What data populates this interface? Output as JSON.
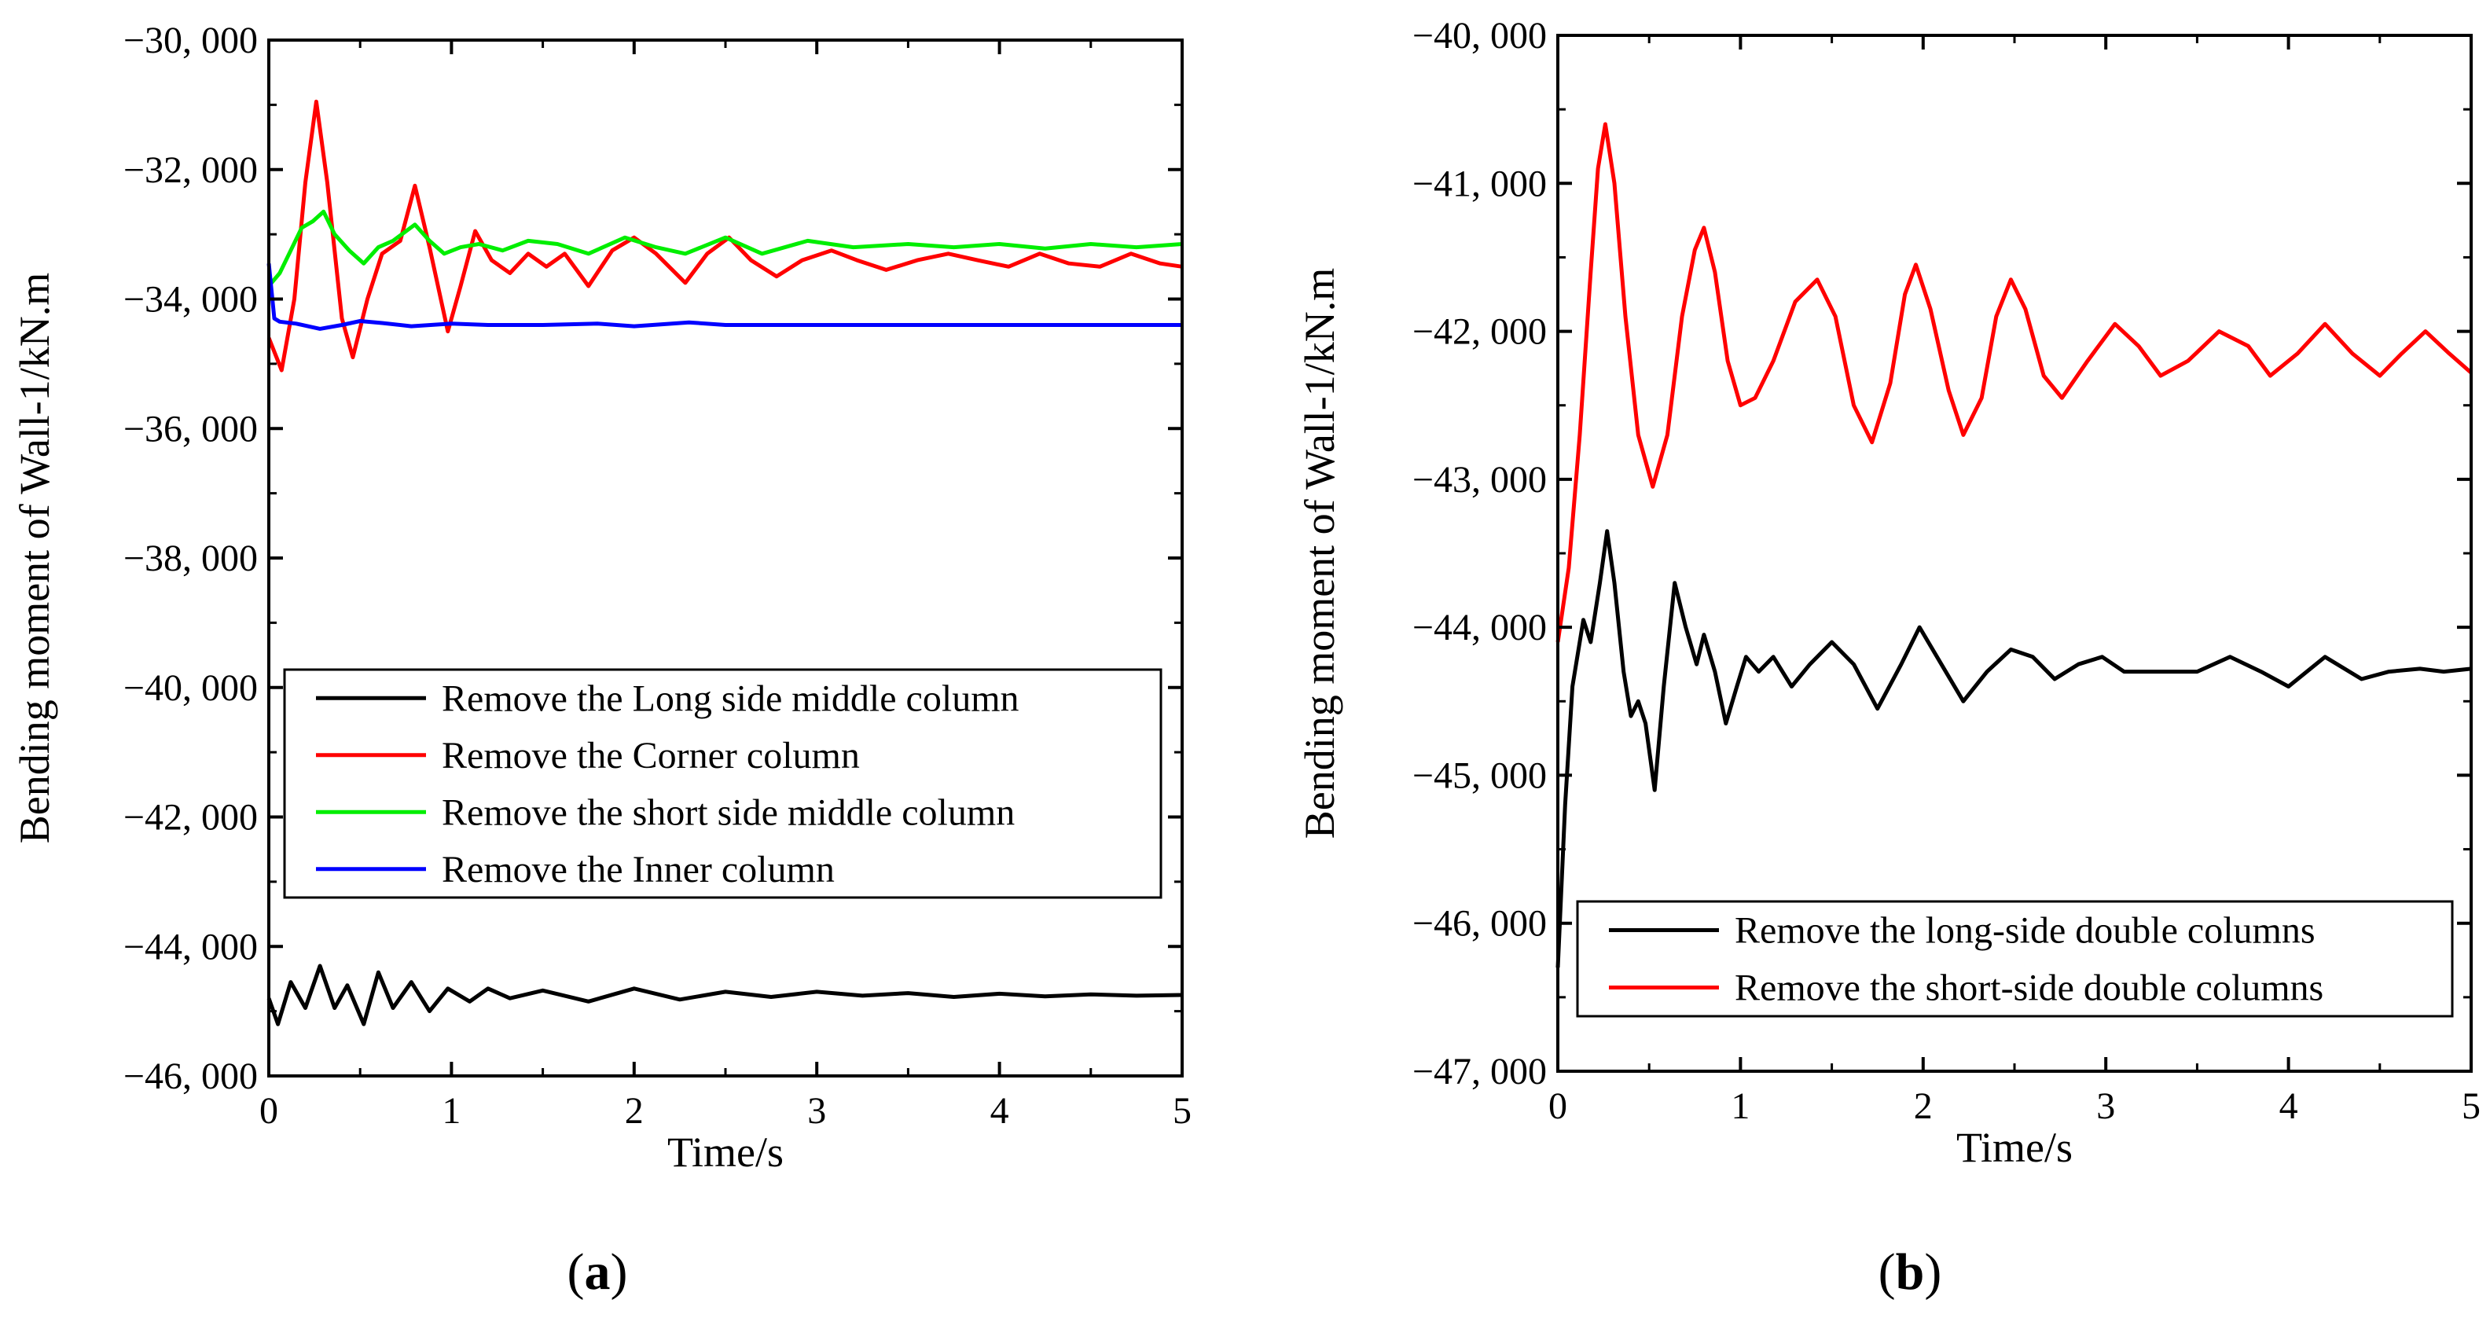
{
  "chart_data": [
    {
      "panel_label": "(a)",
      "type": "line",
      "xlabel": "Time/s",
      "ylabel": "Bending moment of  Wall-1/kN.m",
      "xlim": [
        0,
        5
      ],
      "ylim": [
        -46000,
        -30000
      ],
      "x_ticks": [
        0,
        1,
        2,
        3,
        4,
        5
      ],
      "x_tick_labels": [
        "0",
        "1",
        "2",
        "3",
        "4",
        "5"
      ],
      "y_ticks": [
        -30000,
        -32000,
        -34000,
        -36000,
        -38000,
        -40000,
        -42000,
        -44000,
        -46000
      ],
      "y_tick_labels": [
        "−30, 000",
        "−32, 000",
        "−34, 000",
        "−36, 000",
        "−38, 000",
        "−40, 000",
        "−42, 000",
        "−44, 000",
        "−46, 000"
      ],
      "legend_position": "center-right",
      "series": [
        {
          "name": "Remove the Long side middle column",
          "color": "#000000",
          "points": [
            [
              0.0,
              -44800
            ],
            [
              0.05,
              -45200
            ],
            [
              0.12,
              -44550
            ],
            [
              0.2,
              -44950
            ],
            [
              0.28,
              -44300
            ],
            [
              0.36,
              -44950
            ],
            [
              0.43,
              -44600
            ],
            [
              0.52,
              -45200
            ],
            [
              0.6,
              -44400
            ],
            [
              0.68,
              -44950
            ],
            [
              0.78,
              -44550
            ],
            [
              0.88,
              -45000
            ],
            [
              0.98,
              -44650
            ],
            [
              1.1,
              -44850
            ],
            [
              1.2,
              -44650
            ],
            [
              1.32,
              -44800
            ],
            [
              1.5,
              -44680
            ],
            [
              1.75,
              -44850
            ],
            [
              2.0,
              -44650
            ],
            [
              2.25,
              -44820
            ],
            [
              2.5,
              -44700
            ],
            [
              2.75,
              -44780
            ],
            [
              3.0,
              -44700
            ],
            [
              3.25,
              -44760
            ],
            [
              3.5,
              -44720
            ],
            [
              3.75,
              -44780
            ],
            [
              4.0,
              -44730
            ],
            [
              4.25,
              -44770
            ],
            [
              4.5,
              -44740
            ],
            [
              4.75,
              -44760
            ],
            [
              5.0,
              -44750
            ]
          ]
        },
        {
          "name": "Remove the Corner column",
          "color": "#ff0000",
          "points": [
            [
              0.0,
              -34600
            ],
            [
              0.07,
              -35100
            ],
            [
              0.14,
              -34000
            ],
            [
              0.2,
              -32200
            ],
            [
              0.26,
              -30950
            ],
            [
              0.32,
              -32200
            ],
            [
              0.4,
              -34300
            ],
            [
              0.46,
              -34900
            ],
            [
              0.54,
              -34000
            ],
            [
              0.62,
              -33300
            ],
            [
              0.72,
              -33100
            ],
            [
              0.8,
              -32250
            ],
            [
              0.88,
              -33200
            ],
            [
              0.98,
              -34500
            ],
            [
              1.05,
              -33800
            ],
            [
              1.13,
              -32950
            ],
            [
              1.22,
              -33400
            ],
            [
              1.32,
              -33600
            ],
            [
              1.42,
              -33300
            ],
            [
              1.52,
              -33500
            ],
            [
              1.62,
              -33300
            ],
            [
              1.75,
              -33800
            ],
            [
              1.88,
              -33250
            ],
            [
              2.0,
              -33050
            ],
            [
              2.12,
              -33300
            ],
            [
              2.28,
              -33750
            ],
            [
              2.4,
              -33300
            ],
            [
              2.52,
              -33050
            ],
            [
              2.64,
              -33400
            ],
            [
              2.78,
              -33650
            ],
            [
              2.92,
              -33400
            ],
            [
              3.08,
              -33250
            ],
            [
              3.22,
              -33400
            ],
            [
              3.38,
              -33550
            ],
            [
              3.55,
              -33400
            ],
            [
              3.72,
              -33300
            ],
            [
              3.88,
              -33400
            ],
            [
              4.05,
              -33500
            ],
            [
              4.22,
              -33300
            ],
            [
              4.38,
              -33450
            ],
            [
              4.55,
              -33500
            ],
            [
              4.72,
              -33300
            ],
            [
              4.88,
              -33450
            ],
            [
              5.0,
              -33500
            ]
          ]
        },
        {
          "name": "Remove the short side middle column",
          "color": "#00ee00",
          "points": [
            [
              0.0,
              -33800
            ],
            [
              0.06,
              -33600
            ],
            [
              0.12,
              -33250
            ],
            [
              0.18,
              -32900
            ],
            [
              0.24,
              -32800
            ],
            [
              0.3,
              -32650
            ],
            [
              0.36,
              -33000
            ],
            [
              0.44,
              -33250
            ],
            [
              0.52,
              -33450
            ],
            [
              0.6,
              -33200
            ],
            [
              0.68,
              -33100
            ],
            [
              0.8,
              -32850
            ],
            [
              0.88,
              -33100
            ],
            [
              0.96,
              -33300
            ],
            [
              1.05,
              -33200
            ],
            [
              1.15,
              -33150
            ],
            [
              1.28,
              -33250
            ],
            [
              1.42,
              -33100
            ],
            [
              1.58,
              -33150
            ],
            [
              1.75,
              -33300
            ],
            [
              1.95,
              -33050
            ],
            [
              2.12,
              -33200
            ],
            [
              2.28,
              -33300
            ],
            [
              2.5,
              -33050
            ],
            [
              2.7,
              -33300
            ],
            [
              2.95,
              -33100
            ],
            [
              3.2,
              -33200
            ],
            [
              3.5,
              -33150
            ],
            [
              3.75,
              -33200
            ],
            [
              4.0,
              -33150
            ],
            [
              4.25,
              -33220
            ],
            [
              4.5,
              -33150
            ],
            [
              4.75,
              -33200
            ],
            [
              5.0,
              -33150
            ]
          ]
        },
        {
          "name": "Remove the Inner column",
          "color": "#0000ff",
          "points": [
            [
              0.0,
              -33450
            ],
            [
              0.03,
              -34300
            ],
            [
              0.06,
              -34350
            ],
            [
              0.15,
              -34380
            ],
            [
              0.28,
              -34460
            ],
            [
              0.4,
              -34400
            ],
            [
              0.5,
              -34340
            ],
            [
              0.62,
              -34370
            ],
            [
              0.78,
              -34420
            ],
            [
              1.0,
              -34380
            ],
            [
              1.2,
              -34400
            ],
            [
              1.5,
              -34400
            ],
            [
              1.8,
              -34380
            ],
            [
              2.0,
              -34420
            ],
            [
              2.3,
              -34360
            ],
            [
              2.5,
              -34400
            ],
            [
              3.0,
              -34400
            ],
            [
              3.5,
              -34400
            ],
            [
              4.0,
              -34400
            ],
            [
              4.5,
              -34400
            ],
            [
              5.0,
              -34400
            ]
          ]
        }
      ]
    },
    {
      "panel_label": "(b)",
      "type": "line",
      "xlabel": "Time/s",
      "ylabel": "Bending moment of  Wall-1/kN.m",
      "xlim": [
        0,
        5
      ],
      "ylim": [
        -47000,
        -40000
      ],
      "x_ticks": [
        0,
        1,
        2,
        3,
        4,
        5
      ],
      "x_tick_labels": [
        "0",
        "1",
        "2",
        "3",
        "4",
        "5"
      ],
      "y_ticks": [
        -40000,
        -41000,
        -42000,
        -43000,
        -44000,
        -45000,
        -46000,
        -47000
      ],
      "y_tick_labels": [
        "−40, 000",
        "−41, 000",
        "−42, 000",
        "−43, 000",
        "−44, 000",
        "−45, 000",
        "−46, 000",
        "−47, 000"
      ],
      "legend_position": "bottom-right",
      "series": [
        {
          "name": "Remove the long-side double columns",
          "color": "#000000",
          "points": [
            [
              0.0,
              -46300
            ],
            [
              0.04,
              -45200
            ],
            [
              0.08,
              -44400
            ],
            [
              0.14,
              -43950
            ],
            [
              0.18,
              -44100
            ],
            [
              0.23,
              -43700
            ],
            [
              0.27,
              -43350
            ],
            [
              0.31,
              -43700
            ],
            [
              0.36,
              -44300
            ],
            [
              0.4,
              -44600
            ],
            [
              0.44,
              -44500
            ],
            [
              0.48,
              -44650
            ],
            [
              0.53,
              -45100
            ],
            [
              0.58,
              -44400
            ],
            [
              0.64,
              -43700
            ],
            [
              0.7,
              -44000
            ],
            [
              0.76,
              -44250
            ],
            [
              0.8,
              -44050
            ],
            [
              0.86,
              -44300
            ],
            [
              0.92,
              -44650
            ],
            [
              0.98,
              -44400
            ],
            [
              1.03,
              -44200
            ],
            [
              1.1,
              -44300
            ],
            [
              1.18,
              -44200
            ],
            [
              1.28,
              -44400
            ],
            [
              1.38,
              -44250
            ],
            [
              1.5,
              -44100
            ],
            [
              1.62,
              -44250
            ],
            [
              1.75,
              -44550
            ],
            [
              1.88,
              -44250
            ],
            [
              1.98,
              -44000
            ],
            [
              2.1,
              -44250
            ],
            [
              2.22,
              -44500
            ],
            [
              2.35,
              -44300
            ],
            [
              2.48,
              -44150
            ],
            [
              2.6,
              -44200
            ],
            [
              2.72,
              -44350
            ],
            [
              2.85,
              -44250
            ],
            [
              2.98,
              -44200
            ],
            [
              3.1,
              -44300
            ],
            [
              3.3,
              -44300
            ],
            [
              3.5,
              -44300
            ],
            [
              3.68,
              -44200
            ],
            [
              3.85,
              -44300
            ],
            [
              4.0,
              -44400
            ],
            [
              4.2,
              -44200
            ],
            [
              4.4,
              -44350
            ],
            [
              4.55,
              -44300
            ],
            [
              4.72,
              -44280
            ],
            [
              4.85,
              -44300
            ],
            [
              5.0,
              -44280
            ]
          ]
        },
        {
          "name": "Remove the short-side double columns",
          "color": "#ff0000",
          "points": [
            [
              0.0,
              -44100
            ],
            [
              0.06,
              -43600
            ],
            [
              0.12,
              -42700
            ],
            [
              0.18,
              -41600
            ],
            [
              0.22,
              -40900
            ],
            [
              0.26,
              -40600
            ],
            [
              0.31,
              -41000
            ],
            [
              0.37,
              -41900
            ],
            [
              0.44,
              -42700
            ],
            [
              0.52,
              -43050
            ],
            [
              0.6,
              -42700
            ],
            [
              0.68,
              -41900
            ],
            [
              0.75,
              -41450
            ],
            [
              0.8,
              -41300
            ],
            [
              0.86,
              -41600
            ],
            [
              0.93,
              -42200
            ],
            [
              1.0,
              -42500
            ],
            [
              1.08,
              -42450
            ],
            [
              1.18,
              -42200
            ],
            [
              1.3,
              -41800
            ],
            [
              1.42,
              -41650
            ],
            [
              1.52,
              -41900
            ],
            [
              1.62,
              -42500
            ],
            [
              1.72,
              -42750
            ],
            [
              1.82,
              -42350
            ],
            [
              1.9,
              -41750
            ],
            [
              1.96,
              -41550
            ],
            [
              2.04,
              -41850
            ],
            [
              2.14,
              -42400
            ],
            [
              2.22,
              -42700
            ],
            [
              2.32,
              -42450
            ],
            [
              2.4,
              -41900
            ],
            [
              2.48,
              -41650
            ],
            [
              2.56,
              -41850
            ],
            [
              2.66,
              -42300
            ],
            [
              2.76,
              -42450
            ],
            [
              2.9,
              -42200
            ],
            [
              3.05,
              -41950
            ],
            [
              3.18,
              -42100
            ],
            [
              3.3,
              -42300
            ],
            [
              3.45,
              -42200
            ],
            [
              3.62,
              -42000
            ],
            [
              3.78,
              -42100
            ],
            [
              3.9,
              -42300
            ],
            [
              4.05,
              -42150
            ],
            [
              4.2,
              -41950
            ],
            [
              4.35,
              -42150
            ],
            [
              4.5,
              -42300
            ],
            [
              4.62,
              -42150
            ],
            [
              4.75,
              -42000
            ],
            [
              4.88,
              -42150
            ],
            [
              5.0,
              -42280
            ]
          ]
        }
      ]
    }
  ]
}
